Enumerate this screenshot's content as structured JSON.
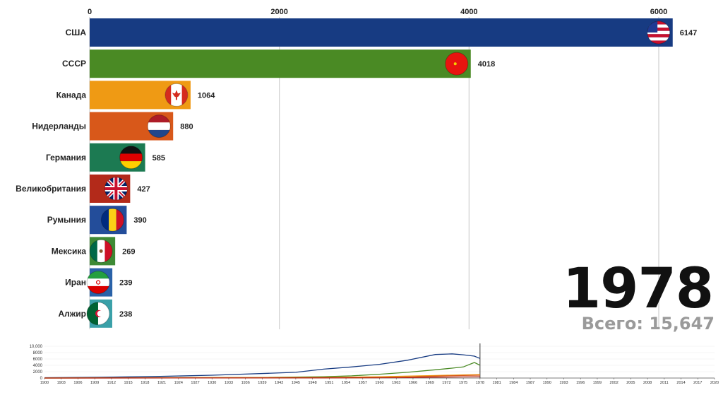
{
  "chart_data": [
    {
      "type": "bar",
      "orientation": "horizontal",
      "categories": [
        "США",
        "СССР",
        "Канада",
        "Нидерланды",
        "Германия",
        "Великобритания",
        "Румыния",
        "Мексика",
        "Иран",
        "Алжир"
      ],
      "values": [
        6147,
        4018,
        1064,
        880,
        585,
        427,
        390,
        269,
        239,
        238
      ],
      "value_labels": [
        "6147",
        "4018",
        "1064",
        "880",
        "585",
        "427",
        "390",
        "269",
        "239",
        "238"
      ],
      "colors": [
        "#173b82",
        "#4a8a24",
        "#ef9a14",
        "#d8581a",
        "#1c7a52",
        "#b32a1a",
        "#234d9a",
        "#3e8a35",
        "#2a62a8",
        "#3aa0a8"
      ],
      "flags": [
        "us-flag-icon",
        "ussr-flag-icon",
        "canada-flag-icon",
        "netherlands-flag-icon",
        "germany-flag-icon",
        "uk-flag-icon",
        "romania-flag-icon",
        "mexico-flag-icon",
        "iran-flag-icon",
        "algeria-flag-icon"
      ],
      "x_ticks": [
        0,
        2000,
        4000,
        6000
      ],
      "xlim": [
        0,
        6000
      ],
      "grid": true,
      "axis_position": "top"
    },
    {
      "type": "line",
      "y_ticks": [
        "10,000",
        "8000",
        "6000",
        "4000",
        "2000",
        "0"
      ],
      "y_tick_values": [
        10000,
        8000,
        6000,
        4000,
        2000,
        0
      ],
      "ylim": [
        0,
        10000
      ],
      "x_ticks": [
        "1900",
        "1903",
        "1906",
        "1909",
        "1912",
        "1915",
        "1918",
        "1921",
        "1924",
        "1927",
        "1930",
        "1933",
        "1936",
        "1939",
        "1942",
        "1945",
        "1948",
        "1951",
        "1954",
        "1957",
        "1960",
        "1963",
        "1966",
        "1969",
        "1972",
        "1975",
        "1978",
        "1981",
        "1984",
        "1987",
        "1990",
        "1993",
        "1996",
        "1999",
        "2002",
        "2005",
        "2008",
        "2011",
        "2014",
        "2017",
        "2020"
      ],
      "xlim": [
        1900,
        2020
      ],
      "cursor_year": 1978,
      "series": [
        {
          "color": "#173b82",
          "x": [
            1900,
            1910,
            1920,
            1930,
            1940,
            1945,
            1950,
            1955,
            1960,
            1965,
            1970,
            1973,
            1975,
            1977,
            1978
          ],
          "y": [
            100,
            250,
            500,
            900,
            1500,
            1800,
            2800,
            3500,
            4300,
            5600,
            7400,
            7600,
            7300,
            6900,
            6147
          ]
        },
        {
          "color": "#4a8a24",
          "x": [
            1900,
            1940,
            1950,
            1955,
            1960,
            1965,
            1970,
            1973,
            1975,
            1977,
            1978
          ],
          "y": [
            0,
            200,
            400,
            700,
            1200,
            1800,
            2600,
            3100,
            3500,
            4900,
            4018
          ]
        },
        {
          "color": "#ef9a14",
          "x": [
            1900,
            1950,
            1960,
            1970,
            1975,
            1978
          ],
          "y": [
            0,
            200,
            400,
            800,
            1000,
            1064
          ]
        },
        {
          "color": "#d8581a",
          "x": [
            1900,
            1960,
            1965,
            1970,
            1975,
            1978
          ],
          "y": [
            0,
            100,
            300,
            600,
            800,
            880
          ]
        },
        {
          "color": "#b32a1a",
          "x": [
            1900,
            1950,
            1965,
            1975,
            1978
          ],
          "y": [
            0,
            50,
            150,
            350,
            427
          ]
        }
      ]
    }
  ],
  "year": "1978",
  "total": {
    "label": "Всего: 15,64",
    "last_digit": "7"
  }
}
